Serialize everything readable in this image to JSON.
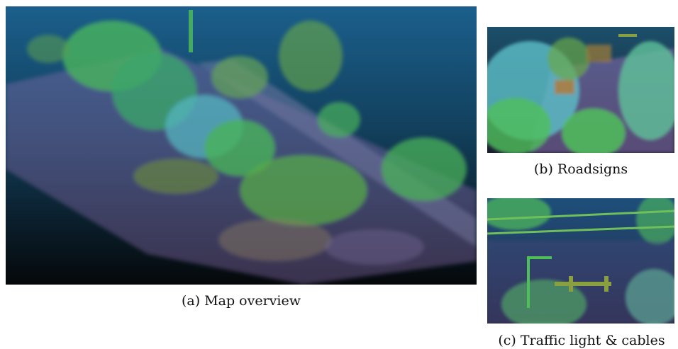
{
  "figure": {
    "subfigures": [
      {
        "id": "a",
        "caption": "(a) Map overview"
      },
      {
        "id": "b",
        "caption": "(b) Roadsigns"
      },
      {
        "id": "c",
        "caption": "(c) Traffic light & cables"
      }
    ]
  },
  "colors": {
    "sky_top": "#1a5a86",
    "sky_bottom": "#0a0f14",
    "vegetation_green": "#4fbf5a",
    "vegetation_cyan": "#5cc1c9",
    "ground_purple": "#9a7ac0",
    "olive": "#8a9a3a"
  }
}
